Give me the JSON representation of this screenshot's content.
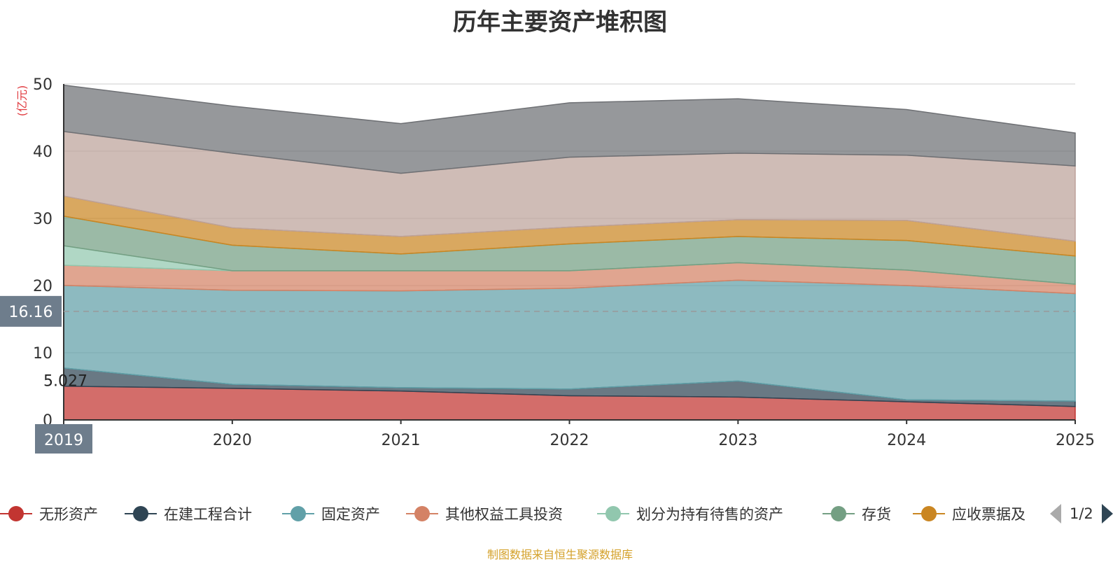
{
  "chart_data": {
    "type": "area",
    "title": "历年主要资产堆积图",
    "ylabel": "(亿元)",
    "xlabel": "",
    "categories": [
      "2019",
      "2020",
      "2021",
      "2022",
      "2023",
      "2024",
      "2025"
    ],
    "yticks": [
      "0",
      "10",
      "20",
      "30",
      "40",
      "50"
    ],
    "ylim": [
      0,
      50
    ],
    "stacked": true,
    "grid": true,
    "legend_position": "bottom",
    "series": [
      {
        "name": "无形资产",
        "color": "#c23531",
        "values": [
          5.027,
          4.7,
          4.3,
          3.6,
          3.4,
          2.7,
          2.0
        ]
      },
      {
        "name": "在建工程合计",
        "color": "#2f4554",
        "values": [
          2.7,
          0.6,
          0.5,
          1.0,
          2.4,
          0.3,
          0.8
        ]
      },
      {
        "name": "固定资产",
        "color": "#61a0a8",
        "values": [
          12.3,
          14.0,
          14.4,
          15.0,
          15.0,
          17.0,
          16.0
        ]
      },
      {
        "name": "其他权益工具投资",
        "color": "#d48265",
        "values": [
          3.0,
          2.9,
          3.0,
          2.6,
          2.6,
          2.3,
          1.4
        ]
      },
      {
        "name": "划分为持有待售的资产",
        "color": "#91c7ae",
        "values": [
          2.9,
          0,
          0,
          0,
          0,
          0,
          0
        ]
      },
      {
        "name": "存货",
        "color": "#749f83",
        "values": [
          4.4,
          3.8,
          2.5,
          4.0,
          3.9,
          4.4,
          4.2
        ]
      },
      {
        "name": "应收票据及",
        "color": "#ca8622",
        "values": [
          3.0,
          2.6,
          2.6,
          2.5,
          2.5,
          3.0,
          2.2
        ]
      },
      {
        "color": "#bda29a",
        "values": [
          9.6,
          11.1,
          9.4,
          10.4,
          9.9,
          9.7,
          11.2
        ]
      },
      {
        "color": "#6e7074",
        "values": [
          6.9,
          7.0,
          7.4,
          8.1,
          8.1,
          6.8,
          4.9
        ]
      }
    ],
    "tooltip": {
      "category": "2019",
      "value_label": "16.16",
      "point_label": "5.027"
    }
  },
  "legend": {
    "pager_text": "1/2"
  },
  "source_note": "制图数据来自恒生聚源数据库"
}
